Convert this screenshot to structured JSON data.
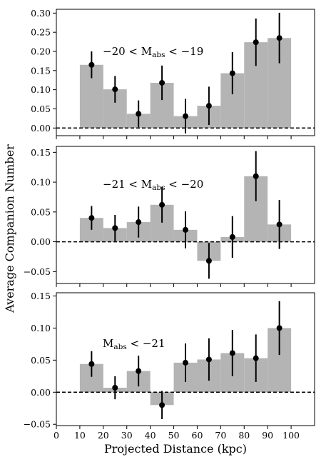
{
  "figure": {
    "ylabel": "Average Companion Number",
    "xlabel": "Projected Distance (kpc)"
  },
  "colors": {
    "bar": "#b4b4b4",
    "marker": "#000000",
    "zero_line": "#000000"
  },
  "chart_data": [
    {
      "type": "bar",
      "annotation": {
        "prefix": "−20 < M",
        "sub": "abs",
        "suffix": " < −19"
      },
      "bin_edges": [
        10,
        20,
        30,
        40,
        50,
        60,
        70,
        80,
        90,
        100
      ],
      "bar_values": [
        0.165,
        0.101,
        0.037,
        0.118,
        0.031,
        0.058,
        0.143,
        0.224,
        0.235
      ],
      "points": {
        "x": [
          15,
          25,
          35,
          45,
          55,
          65,
          75,
          85,
          95
        ],
        "y": [
          0.165,
          0.101,
          0.037,
          0.118,
          0.031,
          0.058,
          0.143,
          0.224,
          0.235
        ],
        "yerr": [
          0.035,
          0.035,
          0.035,
          0.045,
          0.045,
          0.05,
          0.055,
          0.062,
          0.066
        ]
      },
      "ylim": [
        -0.02,
        0.31
      ],
      "yticks": [
        0.0,
        0.05,
        0.1,
        0.15,
        0.2,
        0.25,
        0.3
      ],
      "ytick_labels": [
        "0.00",
        "0.05",
        "0.10",
        "0.15",
        "0.20",
        "0.25",
        "0.30"
      ],
      "xlim": [
        0,
        110
      ],
      "zero_line": true
    },
    {
      "type": "bar",
      "annotation": {
        "prefix": "−21 < M",
        "sub": "abs",
        "suffix": " < −20"
      },
      "bin_edges": [
        10,
        20,
        30,
        40,
        50,
        60,
        70,
        80,
        90,
        100
      ],
      "bar_values": [
        0.04,
        0.023,
        0.033,
        0.062,
        0.02,
        -0.032,
        0.008,
        0.11,
        0.029
      ],
      "points": {
        "x": [
          15,
          25,
          35,
          45,
          55,
          65,
          75,
          85,
          95
        ],
        "y": [
          0.04,
          0.023,
          0.033,
          0.062,
          0.02,
          -0.032,
          0.008,
          0.11,
          0.029
        ],
        "yerr": [
          0.02,
          0.022,
          0.026,
          0.03,
          0.031,
          0.03,
          0.035,
          0.042,
          0.041
        ]
      },
      "ylim": [
        -0.07,
        0.16
      ],
      "yticks": [
        -0.05,
        0.0,
        0.05,
        0.1,
        0.15
      ],
      "ytick_labels": [
        "−0.05",
        "0.00",
        "0.05",
        "0.10",
        "0.15"
      ],
      "xlim": [
        0,
        110
      ],
      "zero_line": true
    },
    {
      "type": "bar",
      "annotation": {
        "prefix": "M",
        "sub": "abs",
        "suffix": " < −21"
      },
      "bin_edges": [
        10,
        20,
        30,
        40,
        50,
        60,
        70,
        80,
        90,
        100
      ],
      "bar_values": [
        0.044,
        0.007,
        0.033,
        -0.02,
        0.046,
        0.051,
        0.061,
        0.053,
        0.1
      ],
      "points": {
        "x": [
          15,
          25,
          35,
          45,
          55,
          65,
          75,
          85,
          95
        ],
        "y": [
          0.044,
          0.007,
          0.033,
          -0.02,
          0.046,
          0.051,
          0.061,
          0.053,
          0.1
        ],
        "yerr": [
          0.02,
          0.018,
          0.024,
          0.022,
          0.03,
          0.033,
          0.036,
          0.037,
          0.042
        ]
      },
      "ylim": [
        -0.052,
        0.155
      ],
      "yticks": [
        -0.05,
        0.0,
        0.05,
        0.1,
        0.15
      ],
      "ytick_labels": [
        "−0.05",
        "0.00",
        "0.05",
        "0.10",
        "0.15"
      ],
      "xticks": [
        0,
        10,
        20,
        30,
        40,
        50,
        60,
        70,
        80,
        90,
        100
      ],
      "xtick_labels": [
        "0",
        "10",
        "20",
        "30",
        "40",
        "50",
        "60",
        "70",
        "80",
        "90",
        "100"
      ],
      "xlim": [
        0,
        110
      ],
      "zero_line": true
    }
  ]
}
